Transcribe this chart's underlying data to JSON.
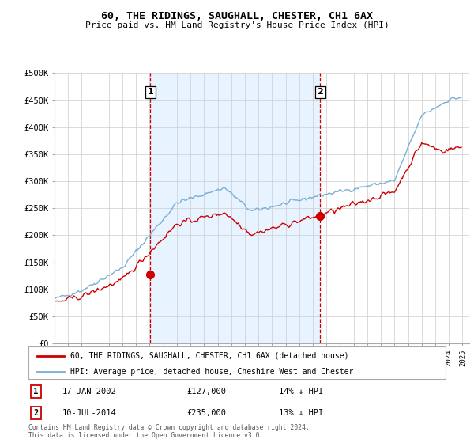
{
  "title": "60, THE RIDINGS, SAUGHALL, CHESTER, CH1 6AX",
  "subtitle": "Price paid vs. HM Land Registry's House Price Index (HPI)",
  "ylim": [
    0,
    500000
  ],
  "yticks": [
    0,
    50000,
    100000,
    150000,
    200000,
    250000,
    300000,
    350000,
    400000,
    450000,
    500000
  ],
  "ytick_labels": [
    "£0",
    "£50K",
    "£100K",
    "£150K",
    "£200K",
    "£250K",
    "£300K",
    "£350K",
    "£400K",
    "£450K",
    "£500K"
  ],
  "hpi_color": "#7bafd4",
  "hpi_fill_color": "#ddeeff",
  "price_color": "#cc0000",
  "sale1_x": 2002.04,
  "sale1_price": 127000,
  "sale1_label": "1",
  "sale2_x": 2014.53,
  "sale2_price": 235000,
  "sale2_label": "2",
  "legend_line1": "60, THE RIDINGS, SAUGHALL, CHESTER, CH1 6AX (detached house)",
  "legend_line2": "HPI: Average price, detached house, Cheshire West and Chester",
  "table_row1_num": "1",
  "table_row1_date": "17-JAN-2002",
  "table_row1_price": "£127,000",
  "table_row1_hpi": "14% ↓ HPI",
  "table_row2_num": "2",
  "table_row2_date": "10-JUL-2014",
  "table_row2_price": "£235,000",
  "table_row2_hpi": "13% ↓ HPI",
  "footer": "Contains HM Land Registry data © Crown copyright and database right 2024.\nThis data is licensed under the Open Government Licence v3.0.",
  "background_color": "#ffffff",
  "grid_color": "#cccccc",
  "x_start_year": 1995,
  "x_end_year": 2025
}
